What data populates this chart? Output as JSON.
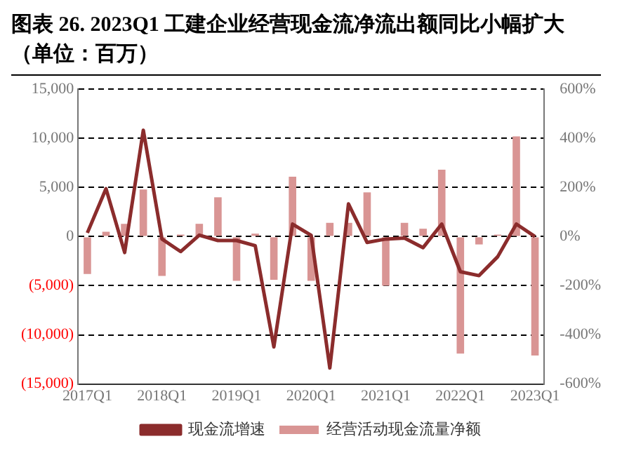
{
  "chart_data": {
    "type": "bar",
    "title": "图表 26. 2023Q1 工建企业经营现金流净流出额同比小幅扩大（单位：百万）",
    "categories": [
      "2017Q1",
      null,
      null,
      null,
      "2018Q1",
      null,
      null,
      null,
      "2019Q1",
      null,
      null,
      null,
      "2020Q1",
      null,
      null,
      null,
      "2021Q1",
      null,
      null,
      null,
      "2022Q1",
      null,
      null,
      null,
      "2023Q1"
    ],
    "series": [
      {
        "name": "经营活动现金流量净额",
        "color": "#d99594",
        "values": [
          -3800,
          500,
          1300,
          4800,
          -4000,
          200,
          1300,
          4000,
          -4500,
          300,
          -4400,
          6100,
          -4500,
          1400,
          1400,
          4500,
          -5000,
          1400,
          800,
          6800,
          -11900,
          -800,
          200,
          10200,
          -12100
        ]
      },
      {
        "name": "现金流增速",
        "type": "line",
        "axis": "y2",
        "color": "#8b2c2c",
        "values": [
          15,
          195,
          -65,
          433,
          -10,
          -61,
          6,
          -16,
          -16,
          -37,
          -449,
          51,
          5,
          -535,
          133,
          -24,
          -10,
          -6,
          -45,
          51,
          -143,
          -159,
          -82,
          51,
          0
        ]
      }
    ],
    "ylim": [
      -15000,
      15000
    ],
    "yticks": [
      {
        "value": -15000,
        "label": "(15,000)"
      },
      {
        "value": -10000,
        "label": "(10,000)"
      },
      {
        "value": -5000,
        "label": "(5,000)"
      },
      0,
      {
        "value": 5000,
        "label": "5,000"
      },
      {
        "value": 10000,
        "label": "10,000"
      },
      {
        "value": 15000,
        "label": "15,000"
      }
    ],
    "y2lim": [
      -600,
      600
    ],
    "y2ticks": [
      {
        "value": -600,
        "label": "-600%"
      },
      {
        "value": -400,
        "label": "-400%"
      },
      {
        "value": -200,
        "label": "-200%"
      },
      {
        "value": 0,
        "label": "0%"
      },
      {
        "value": 200,
        "label": "200%"
      },
      {
        "value": 400,
        "label": "400%"
      },
      {
        "value": 600,
        "label": "600%"
      }
    ],
    "grid": "y",
    "legend": "bottom",
    "marker": "none",
    "line_style": "solid"
  }
}
